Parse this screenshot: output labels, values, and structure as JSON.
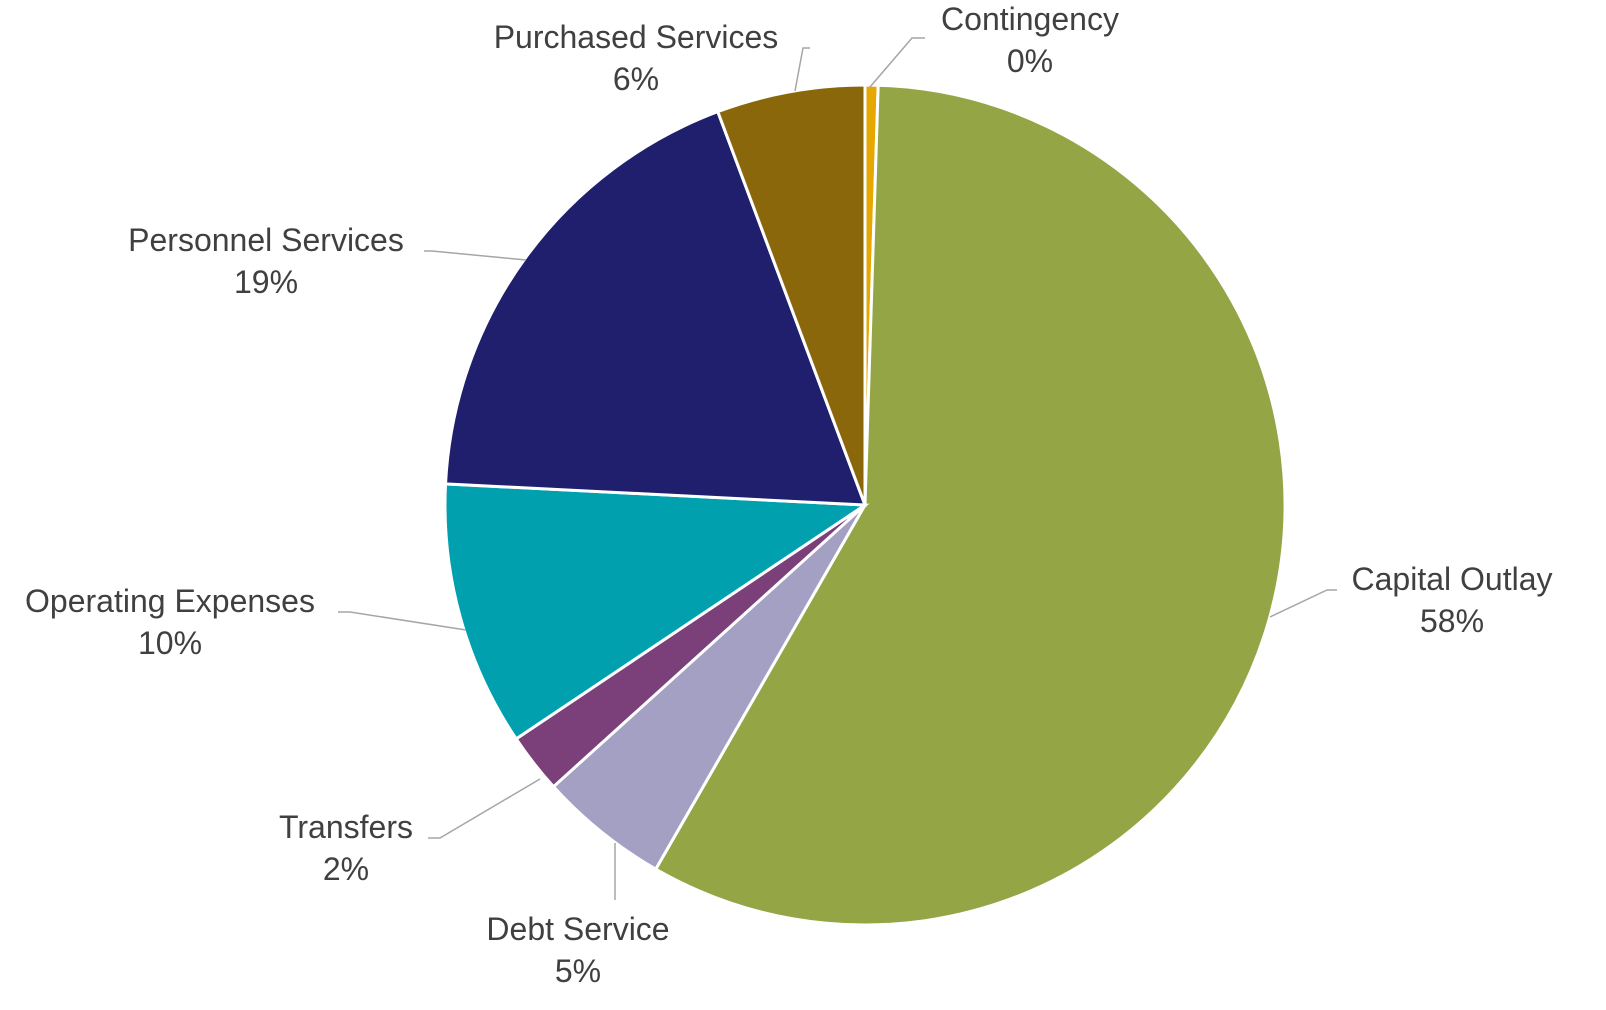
{
  "chart_data": {
    "type": "pie",
    "title": "",
    "start_angle_deg": 0,
    "direction": "clockwise",
    "slices": [
      {
        "label": "Contingency",
        "value": 0.5,
        "display": "0%",
        "color": "#E6A800"
      },
      {
        "label": "Capital Outlay",
        "value": 57.8,
        "display": "58%",
        "color": "#94A546"
      },
      {
        "label": "Debt Service",
        "value": 5.0,
        "display": "5%",
        "color": "#A4A0C4"
      },
      {
        "label": "Transfers",
        "value": 2.3,
        "display": "2%",
        "color": "#7B3F7A"
      },
      {
        "label": "Operating Expenses",
        "value": 10.2,
        "display": "10%",
        "color": "#00A0AF"
      },
      {
        "label": "Personnel Services",
        "value": 18.5,
        "display": "19%",
        "color": "#1F1F6E"
      },
      {
        "label": "Purchased Services",
        "value": 5.7,
        "display": "6%",
        "color": "#8B670C"
      }
    ],
    "legend": "none",
    "data_labels": "outside with leader lines"
  }
}
